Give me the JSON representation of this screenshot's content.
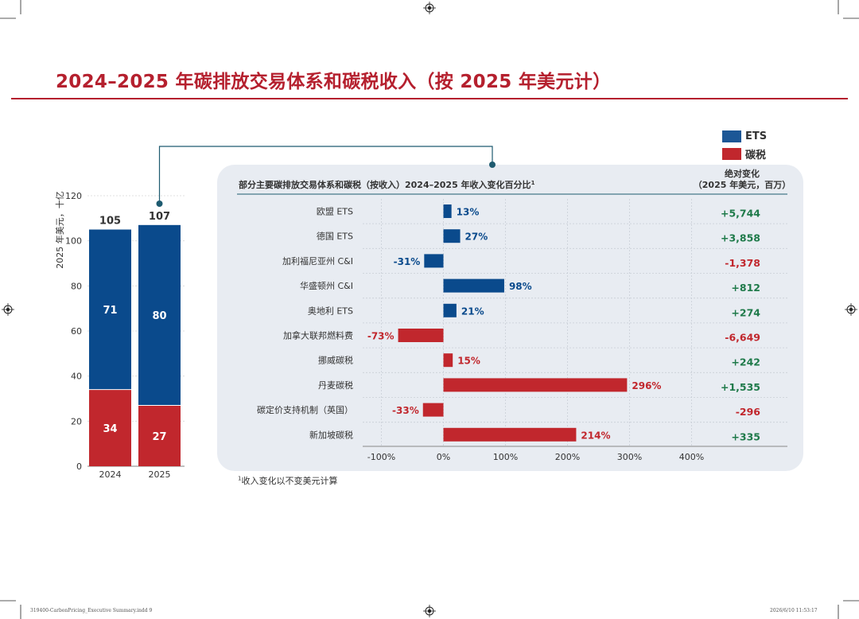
{
  "title": "2024–2025 年碳排放交易体系和碳税收入（按 2025 年美元计）",
  "legend": {
    "items": [
      {
        "label": "ETS",
        "color": "#1c5796"
      },
      {
        "label": "碳税",
        "color": "#c1272d"
      }
    ]
  },
  "colors": {
    "ets": "#0a4a8c",
    "tax": "#c1272d",
    "ets_text": "#0a4a8c",
    "tax_text": "#c1272d",
    "positive": "#1f7a4a",
    "negative": "#c1272d",
    "accent": "#b5202e",
    "connector": "#1e5b70"
  },
  "chart_data": [
    {
      "type": "bar",
      "stacked": true,
      "categories": [
        "2024",
        "2025"
      ],
      "series": [
        {
          "name": "碳税",
          "values": [
            34,
            27
          ]
        },
        {
          "name": "ETS",
          "values": [
            71,
            80
          ]
        }
      ],
      "totals": [
        "105",
        "107"
      ],
      "ylabel": "2025 年美元，十亿",
      "ylim": [
        0,
        120
      ],
      "yticks": [
        0,
        20,
        40,
        60,
        80,
        100,
        120
      ],
      "grid": true
    },
    {
      "type": "bar",
      "orientation": "horizontal",
      "title": "部分主要碳排放交易体系和碳税（按收入）2024–2025 年收入变化百分比",
      "title_sup": "1",
      "categories": [
        "欧盟 ETS",
        "德国 ETS",
        "加利福尼亚州 C&I",
        "华盛顿州 C&I",
        "奥地利 ETS",
        "加拿大联邦燃料费",
        "挪威碳税",
        "丹麦碳税",
        "碳定价支持机制（英国）",
        "新加坡碳税"
      ],
      "values": [
        13,
        27,
        -31,
        98,
        21,
        -73,
        15,
        296,
        -33,
        214
      ],
      "value_labels": [
        "13%",
        "27%",
        "-31%",
        "98%",
        "21%",
        "-73%",
        "15%",
        "296%",
        "-33%",
        "214%"
      ],
      "kinds": [
        "ets",
        "ets",
        "ets",
        "ets",
        "ets",
        "tax",
        "tax",
        "tax",
        "tax",
        "tax"
      ],
      "xlim": [
        -100,
        400
      ],
      "xticks": [
        -100,
        0,
        100,
        200,
        300,
        400
      ],
      "xtick_labels": [
        "-100%",
        "0%",
        "100%",
        "200%",
        "300%",
        "400%"
      ],
      "abs_header_line1": "绝对变化",
      "abs_header_line2": "（2025 年美元，百万）",
      "abs_changes": [
        "+5,744",
        "+3,858",
        "-1,378",
        "+812",
        "+274",
        "-6,649",
        "+242",
        "+1,535",
        "-296",
        "+335"
      ]
    }
  ],
  "footnote": "收入变化以不变美元计算",
  "footnote_sup": "1",
  "print_left": "319400-CarbonPricing_Executive Summary.indd   9",
  "print_right": "2026/6/10   11:53:17"
}
